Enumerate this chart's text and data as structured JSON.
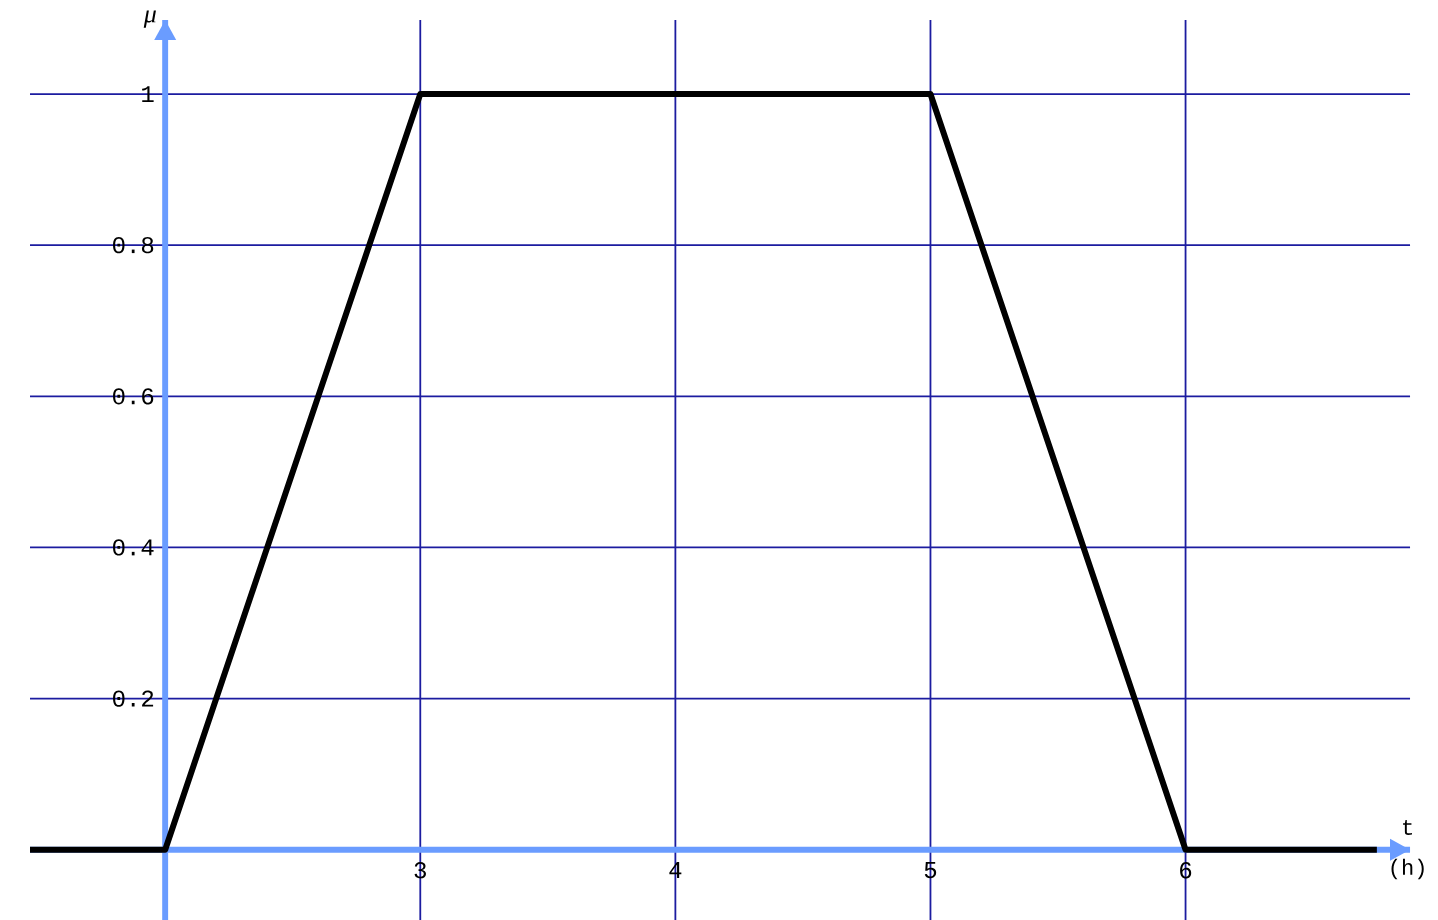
{
  "chart_data": {
    "type": "line",
    "x": [
      1.47,
      2,
      3,
      5,
      6,
      6.75
    ],
    "values": [
      0,
      0,
      1,
      1,
      0,
      0
    ],
    "color": "#000000",
    "xlim": [
      1.47,
      6.88
    ],
    "ylim": [
      -0.093,
      1.098
    ],
    "xticks": [
      {
        "value": 2,
        "label": null
      },
      3,
      4,
      5,
      6
    ],
    "yticks": [
      0.2,
      0.4,
      0.6,
      0.8,
      1
    ],
    "grid": true,
    "xlabel": "t (h)",
    "ylabel": "μ"
  }
}
